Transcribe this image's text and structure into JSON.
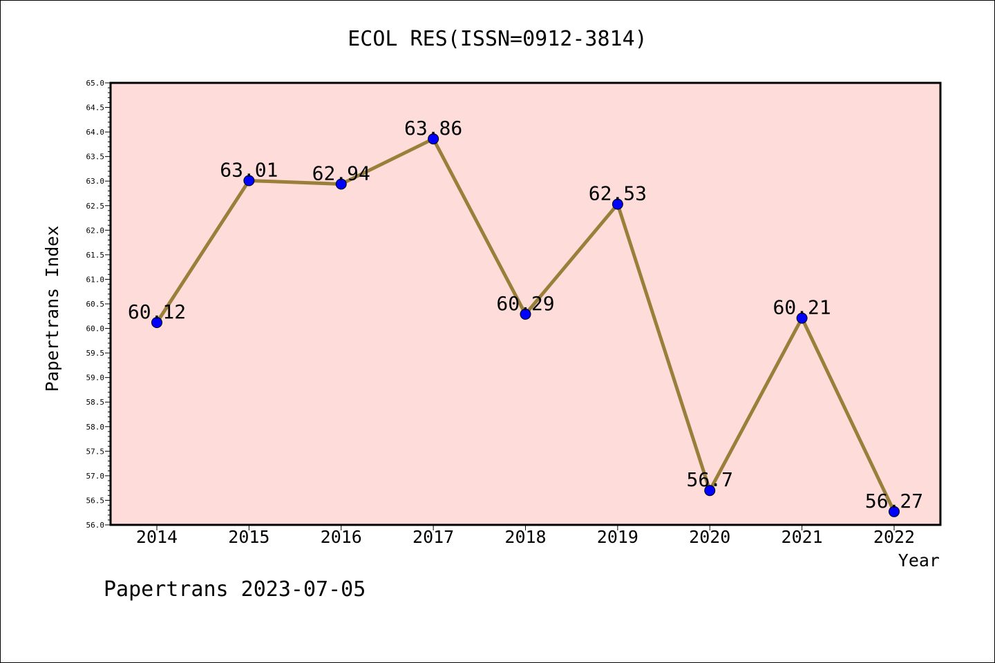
{
  "chart_data": {
    "type": "line",
    "title": "ECOL RES(ISSN=0912-3814)",
    "xlabel": "Year",
    "ylabel": "Papertrans Index",
    "categories": [
      "2014",
      "2015",
      "2016",
      "2017",
      "2018",
      "2019",
      "2020",
      "2021",
      "2022"
    ],
    "values": [
      60.12,
      63.01,
      62.94,
      63.86,
      60.29,
      62.53,
      56.7,
      60.21,
      56.27
    ],
    "value_labels": [
      "60.12",
      "63.01",
      "62.94",
      "63.86",
      "60.29",
      "62.53",
      "56.7",
      "60.21",
      "56.27"
    ],
    "ylim": [
      56.0,
      65.0
    ],
    "y_tick_step": 0.5,
    "y_tick_labels": [
      "56.0",
      "56.5",
      "57.0",
      "57.5",
      "58.0",
      "58.5",
      "59.0",
      "59.5",
      "60.0",
      "60.5",
      "61.0",
      "61.5",
      "62.0",
      "62.5",
      "63.0",
      "63.5",
      "64.0",
      "64.5",
      "65.0"
    ],
    "grid": false,
    "footer": "Papertrans 2023-07-05",
    "colors": {
      "plot_background": "#fddcda",
      "line": "#9a7f3a",
      "marker": "#0000ff",
      "axis": "#000000"
    }
  }
}
